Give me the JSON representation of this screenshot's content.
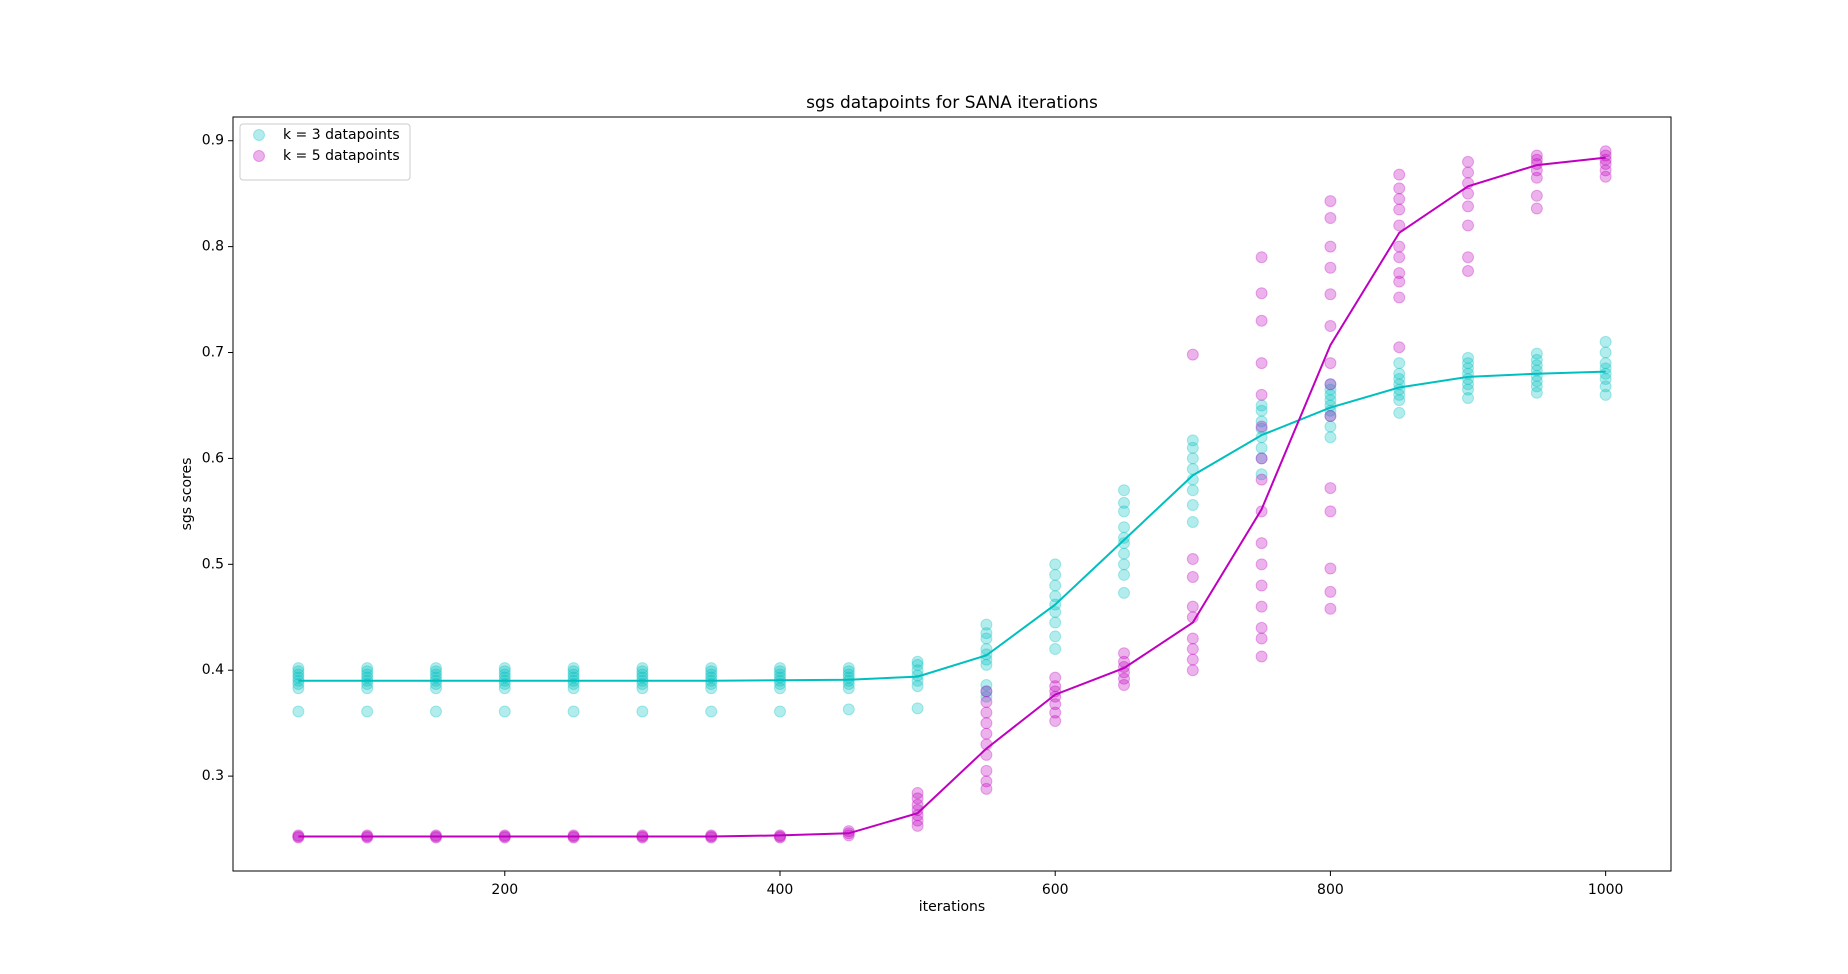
{
  "chart_data": {
    "type": "scatter",
    "title": "sgs datapoints for SANA iterations",
    "xlabel": "iterations",
    "ylabel": "sgs scores",
    "xlim": [
      2.5,
      1047.5
    ],
    "ylim": [
      0.2104,
      0.9224
    ],
    "xticks": [
      200,
      400,
      600,
      800,
      1000
    ],
    "yticks": [
      0.3,
      0.4,
      0.5,
      0.6,
      0.7,
      0.8,
      0.9
    ],
    "legend": "upper left",
    "alpha": 0.3,
    "series": [
      {
        "name": "k = 3 datapoints",
        "color": "#00bfbf",
        "x": [
          50,
          50,
          50,
          50,
          50,
          50,
          50,
          50,
          100,
          100,
          100,
          100,
          100,
          100,
          100,
          100,
          150,
          150,
          150,
          150,
          150,
          150,
          150,
          150,
          200,
          200,
          200,
          200,
          200,
          200,
          200,
          200,
          250,
          250,
          250,
          250,
          250,
          250,
          250,
          250,
          300,
          300,
          300,
          300,
          300,
          300,
          300,
          300,
          350,
          350,
          350,
          350,
          350,
          350,
          350,
          350,
          400,
          400,
          400,
          400,
          400,
          400,
          400,
          400,
          450,
          450,
          450,
          450,
          450,
          450,
          450,
          450,
          500,
          500,
          500,
          500,
          500,
          500,
          500,
          550,
          550,
          550,
          550,
          550,
          550,
          550,
          550,
          550,
          550,
          600,
          600,
          600,
          600,
          600,
          600,
          600,
          600,
          600,
          650,
          650,
          650,
          650,
          650,
          650,
          650,
          650,
          650,
          650,
          700,
          700,
          700,
          700,
          700,
          700,
          700,
          700,
          750,
          750,
          750,
          750,
          750,
          750,
          750,
          750,
          800,
          800,
          800,
          800,
          800,
          800,
          800,
          800,
          800,
          850,
          850,
          850,
          850,
          850,
          850,
          850,
          850,
          900,
          900,
          900,
          900,
          900,
          900,
          900,
          900,
          950,
          950,
          950,
          950,
          950,
          950,
          950,
          950,
          1000,
          1000,
          1000,
          1000,
          1000,
          1000,
          1000,
          1000
        ],
        "values": [
          0.361,
          0.383,
          0.387,
          0.39,
          0.393,
          0.396,
          0.399,
          0.402,
          0.361,
          0.383,
          0.387,
          0.39,
          0.393,
          0.396,
          0.399,
          0.402,
          0.361,
          0.383,
          0.387,
          0.39,
          0.393,
          0.396,
          0.399,
          0.402,
          0.361,
          0.383,
          0.387,
          0.39,
          0.393,
          0.396,
          0.399,
          0.402,
          0.361,
          0.383,
          0.387,
          0.39,
          0.393,
          0.396,
          0.399,
          0.402,
          0.361,
          0.383,
          0.387,
          0.39,
          0.393,
          0.396,
          0.399,
          0.402,
          0.361,
          0.383,
          0.387,
          0.39,
          0.393,
          0.396,
          0.399,
          0.402,
          0.361,
          0.383,
          0.387,
          0.39,
          0.393,
          0.396,
          0.399,
          0.402,
          0.363,
          0.383,
          0.387,
          0.39,
          0.393,
          0.396,
          0.399,
          0.402,
          0.364,
          0.385,
          0.39,
          0.395,
          0.4,
          0.405,
          0.408,
          0.375,
          0.38,
          0.386,
          0.405,
          0.41,
          0.415,
          0.42,
          0.43,
          0.435,
          0.443,
          0.42,
          0.432,
          0.445,
          0.455,
          0.462,
          0.47,
          0.48,
          0.49,
          0.5,
          0.473,
          0.49,
          0.5,
          0.51,
          0.52,
          0.525,
          0.535,
          0.55,
          0.558,
          0.57,
          0.54,
          0.556,
          0.57,
          0.58,
          0.59,
          0.6,
          0.61,
          0.617,
          0.585,
          0.6,
          0.61,
          0.62,
          0.628,
          0.635,
          0.645,
          0.65,
          0.62,
          0.63,
          0.64,
          0.645,
          0.65,
          0.655,
          0.66,
          0.665,
          0.67,
          0.643,
          0.655,
          0.66,
          0.665,
          0.67,
          0.675,
          0.68,
          0.69,
          0.657,
          0.665,
          0.67,
          0.675,
          0.68,
          0.685,
          0.69,
          0.695,
          0.662,
          0.668,
          0.673,
          0.678,
          0.683,
          0.688,
          0.693,
          0.699,
          0.66,
          0.668,
          0.675,
          0.68,
          0.685,
          0.69,
          0.7,
          0.71
        ]
      },
      {
        "name": "k = 5 datapoints",
        "color": "#bf00bf",
        "x": [
          50,
          50,
          50,
          100,
          100,
          100,
          150,
          150,
          150,
          200,
          200,
          200,
          250,
          250,
          250,
          300,
          300,
          300,
          350,
          350,
          350,
          400,
          400,
          400,
          450,
          450,
          450,
          500,
          500,
          500,
          500,
          500,
          500,
          500,
          550,
          550,
          550,
          550,
          550,
          550,
          550,
          550,
          550,
          550,
          600,
          600,
          600,
          600,
          600,
          600,
          600,
          650,
          650,
          650,
          650,
          650,
          650,
          700,
          700,
          700,
          700,
          700,
          700,
          700,
          700,
          700,
          750,
          750,
          750,
          750,
          750,
          750,
          750,
          750,
          750,
          750,
          750,
          750,
          750,
          750,
          750,
          750,
          800,
          800,
          800,
          800,
          800,
          800,
          800,
          800,
          800,
          800,
          800,
          800,
          800,
          800,
          850,
          850,
          850,
          850,
          850,
          850,
          850,
          850,
          850,
          850,
          850,
          900,
          900,
          900,
          900,
          900,
          900,
          900,
          900,
          950,
          950,
          950,
          950,
          950,
          950,
          950,
          1000,
          1000,
          1000,
          1000,
          1000,
          1000
        ],
        "values": [
          0.242,
          0.243,
          0.244,
          0.242,
          0.243,
          0.244,
          0.242,
          0.243,
          0.244,
          0.242,
          0.243,
          0.244,
          0.242,
          0.243,
          0.244,
          0.242,
          0.243,
          0.244,
          0.242,
          0.243,
          0.244,
          0.242,
          0.243,
          0.244,
          0.244,
          0.246,
          0.248,
          0.253,
          0.258,
          0.263,
          0.268,
          0.273,
          0.279,
          0.284,
          0.288,
          0.295,
          0.305,
          0.32,
          0.33,
          0.34,
          0.35,
          0.36,
          0.37,
          0.38,
          0.352,
          0.36,
          0.368,
          0.375,
          0.38,
          0.385,
          0.393,
          0.386,
          0.392,
          0.398,
          0.403,
          0.408,
          0.416,
          0.4,
          0.41,
          0.42,
          0.43,
          0.45,
          0.46,
          0.488,
          0.505,
          0.698,
          0.413,
          0.43,
          0.44,
          0.46,
          0.48,
          0.5,
          0.52,
          0.55,
          0.58,
          0.6,
          0.63,
          0.66,
          0.69,
          0.73,
          0.756,
          0.79,
          0.458,
          0.474,
          0.496,
          0.55,
          0.572,
          0.64,
          0.67,
          0.69,
          0.725,
          0.755,
          0.78,
          0.8,
          0.827,
          0.843,
          0.705,
          0.752,
          0.767,
          0.775,
          0.79,
          0.8,
          0.82,
          0.835,
          0.845,
          0.855,
          0.868,
          0.777,
          0.79,
          0.82,
          0.838,
          0.85,
          0.86,
          0.87,
          0.88,
          0.836,
          0.848,
          0.865,
          0.872,
          0.878,
          0.882,
          0.886,
          0.866,
          0.872,
          0.878,
          0.882,
          0.886,
          0.89
        ]
      }
    ],
    "lines": [
      {
        "color": "#00bfbf",
        "x": [
          50,
          100,
          150,
          200,
          250,
          300,
          350,
          400,
          450,
          500,
          550,
          600,
          650,
          700,
          750,
          800,
          850,
          900,
          950,
          1000
        ],
        "values": [
          0.39,
          0.39,
          0.39,
          0.39,
          0.39,
          0.39,
          0.39,
          0.3905,
          0.391,
          0.394,
          0.414,
          0.462,
          0.523,
          0.584,
          0.622,
          0.648,
          0.667,
          0.677,
          0.68,
          0.682
        ]
      },
      {
        "color": "#bf00bf",
        "x": [
          50,
          100,
          150,
          200,
          250,
          300,
          350,
          400,
          450,
          500,
          550,
          600,
          650,
          700,
          750,
          800,
          850,
          900,
          950,
          1000
        ],
        "values": [
          0.243,
          0.243,
          0.243,
          0.243,
          0.243,
          0.243,
          0.243,
          0.244,
          0.246,
          0.265,
          0.326,
          0.377,
          0.402,
          0.445,
          0.552,
          0.707,
          0.813,
          0.857,
          0.877,
          0.884
        ]
      }
    ]
  }
}
